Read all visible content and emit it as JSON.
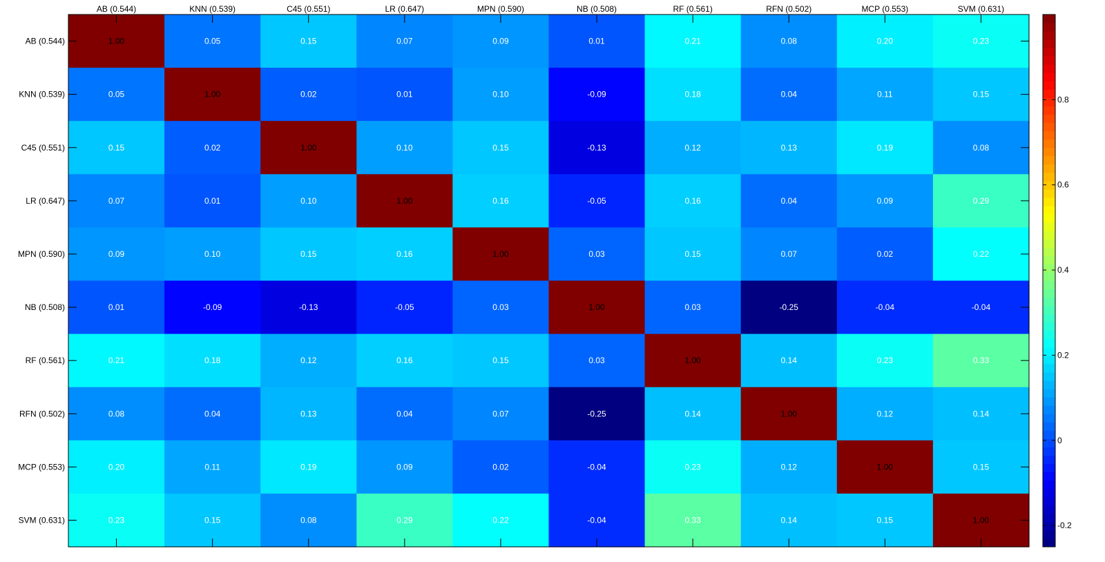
{
  "chart_data": {
    "type": "heatmap",
    "x_labels": [
      "AB (0.544)",
      "KNN (0.539)",
      "C45 (0.551)",
      "LR (0.647)",
      "MPN (0.590)",
      "NB (0.508)",
      "RF (0.561)",
      "RFN (0.502)",
      "MCP (0.553)",
      "SVM (0.631)"
    ],
    "y_labels": [
      "AB (0.544)",
      "KNN (0.539)",
      "C45 (0.551)",
      "LR (0.647)",
      "MPN (0.590)",
      "NB (0.508)",
      "RF (0.561)",
      "RFN (0.502)",
      "MCP (0.553)",
      "SVM (0.631)"
    ],
    "values": [
      [
        1.0,
        0.05,
        0.15,
        0.07,
        0.09,
        0.01,
        0.21,
        0.08,
        0.2,
        0.23
      ],
      [
        0.05,
        1.0,
        0.02,
        0.01,
        0.1,
        -0.09,
        0.18,
        0.04,
        0.11,
        0.15
      ],
      [
        0.15,
        0.02,
        1.0,
        0.1,
        0.15,
        -0.13,
        0.12,
        0.13,
        0.19,
        0.08
      ],
      [
        0.07,
        0.01,
        0.1,
        1.0,
        0.16,
        -0.05,
        0.16,
        0.04,
        0.09,
        0.29
      ],
      [
        0.09,
        0.1,
        0.15,
        0.16,
        1.0,
        0.03,
        0.15,
        0.07,
        0.02,
        0.22
      ],
      [
        0.01,
        -0.09,
        -0.13,
        -0.05,
        0.03,
        1.0,
        0.03,
        -0.25,
        -0.04,
        -0.04
      ],
      [
        0.21,
        0.18,
        0.12,
        0.16,
        0.15,
        0.03,
        1.0,
        0.14,
        0.23,
        0.33
      ],
      [
        0.08,
        0.04,
        0.13,
        0.04,
        0.07,
        -0.25,
        0.14,
        1.0,
        0.12,
        0.14
      ],
      [
        0.2,
        0.11,
        0.19,
        0.09,
        0.02,
        -0.04,
        0.23,
        0.12,
        1.0,
        0.15
      ],
      [
        0.23,
        0.15,
        0.08,
        0.29,
        0.22,
        -0.04,
        0.33,
        0.14,
        0.15,
        1.0
      ]
    ],
    "value_labels": [
      [
        "1.00",
        "0.05",
        "0.15",
        "0.07",
        "0.09",
        "0.01",
        "0.21",
        "0.08",
        "0.20",
        "0.23"
      ],
      [
        "0.05",
        "1.00",
        "0.02",
        "0.01",
        "0.10",
        "-0.09",
        "0.18",
        "0.04",
        "0.11",
        "0.15"
      ],
      [
        "0.15",
        "0.02",
        "1.00",
        "0.10",
        "0.15",
        "-0.13",
        "0.12",
        "0.13",
        "0.19",
        "0.08"
      ],
      [
        "0.07",
        "0.01",
        "0.10",
        "1.00",
        "0.16",
        "-0.05",
        "0.16",
        "0.04",
        "0.09",
        "0.29"
      ],
      [
        "0.09",
        "0.10",
        "0.15",
        "0.16",
        "1.00",
        "0.03",
        "0.15",
        "0.07",
        "0.02",
        "0.22"
      ],
      [
        "0.01",
        "-0.09",
        "-0.13",
        "-0.05",
        "0.03",
        "1.00",
        "0.03",
        "-0.25",
        "-0.04",
        "-0.04"
      ],
      [
        "0.21",
        "0.18",
        "0.12",
        "0.16",
        "0.15",
        "0.03",
        "1.00",
        "0.14",
        "0.23",
        "0.33"
      ],
      [
        "0.08",
        "0.04",
        "0.13",
        "0.04",
        "0.07",
        "-0.25",
        "0.14",
        "1.00",
        "0.12",
        "0.14"
      ],
      [
        "0.20",
        "0.11",
        "0.19",
        "0.09",
        "0.02",
        "-0.04",
        "0.23",
        "0.12",
        "1.00",
        "0.15"
      ],
      [
        "0.23",
        "0.15",
        "0.08",
        "0.29",
        "0.22",
        "-0.04",
        "0.33",
        "0.14",
        "0.15",
        "1.00"
      ]
    ],
    "colormap": "jet",
    "color_range": [
      -0.25,
      1.0
    ],
    "colorbar": {
      "placement": "right",
      "ticks": [
        -0.2,
        0,
        0.2,
        0.4,
        0.6,
        0.8
      ],
      "tick_labels": [
        "-0.2",
        "0",
        "0.2",
        "0.4",
        "0.6",
        "0.8"
      ]
    },
    "title": "",
    "xlabel": "",
    "ylabel": "",
    "x_axis_position": "top",
    "grid": false
  }
}
